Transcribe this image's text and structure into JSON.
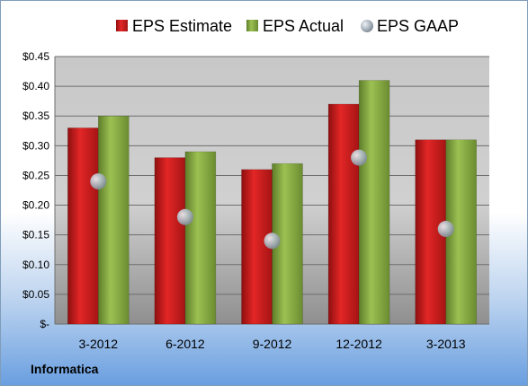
{
  "chart_data": {
    "type": "bar",
    "categories": [
      "3-2012",
      "6-2012",
      "9-2012",
      "12-2012",
      "3-2013"
    ],
    "series": [
      {
        "name": "EPS Estimate",
        "kind": "bar",
        "color": "#cc1a1a",
        "values": [
          0.33,
          0.28,
          0.26,
          0.37,
          0.31
        ]
      },
      {
        "name": "EPS Actual",
        "kind": "bar",
        "color": "#7ea33b",
        "values": [
          0.35,
          0.29,
          0.27,
          0.41,
          0.31
        ]
      },
      {
        "name": "EPS GAAP",
        "kind": "marker",
        "color": "#a9b3bd",
        "values": [
          0.24,
          0.18,
          0.14,
          0.28,
          0.16
        ]
      }
    ],
    "yticks": [
      "$-",
      "$0.05",
      "$0.10",
      "$0.15",
      "$0.20",
      "$0.25",
      "$0.30",
      "$0.35",
      "$0.40",
      "$0.45"
    ],
    "ylim": [
      0,
      0.45
    ],
    "grid": true,
    "legend": "top",
    "company": "Informatica"
  }
}
